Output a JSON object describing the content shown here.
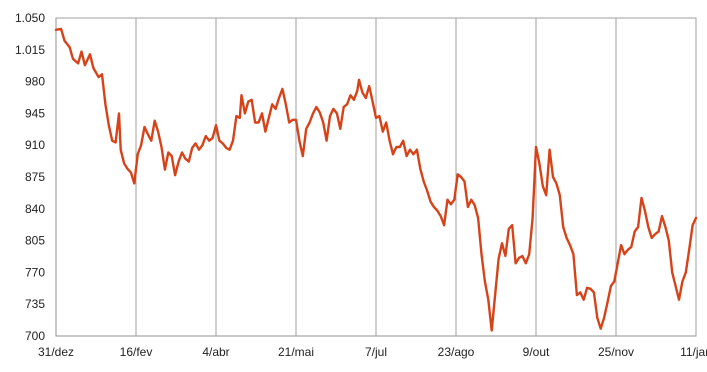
{
  "chart_data": {
    "type": "line",
    "title": "",
    "xlabel": "",
    "ylabel": "",
    "x_ticks": [
      "31/dez",
      "16/fev",
      "4/abr",
      "21/mai",
      "7/jul",
      "23/ago",
      "9/out",
      "25/nov",
      "11/jan"
    ],
    "y_ticks": [
      "700",
      "735",
      "770",
      "805",
      "840",
      "875",
      "910",
      "945",
      "980",
      "1.015",
      "1.050"
    ],
    "ylim": [
      700,
      1050
    ],
    "xlim_days": [
      0,
      376
    ],
    "grid": {
      "vertical": true,
      "horizontal": false
    },
    "legend": "none",
    "series": [
      {
        "color": "#d64319",
        "points": [
          [
            0,
            1037
          ],
          [
            3,
            1038
          ],
          [
            5,
            1025
          ],
          [
            8,
            1018
          ],
          [
            10,
            1005
          ],
          [
            13,
            1000
          ],
          [
            15,
            1013
          ],
          [
            17,
            998
          ],
          [
            20,
            1010
          ],
          [
            22,
            995
          ],
          [
            25,
            985
          ],
          [
            27,
            988
          ],
          [
            29,
            955
          ],
          [
            31,
            932
          ],
          [
            33,
            915
          ],
          [
            35,
            913
          ],
          [
            37,
            945
          ],
          [
            38,
            905
          ],
          [
            40,
            890
          ],
          [
            42,
            884
          ],
          [
            44,
            880
          ],
          [
            46,
            868
          ],
          [
            48,
            900
          ],
          [
            50,
            910
          ],
          [
            52,
            930
          ],
          [
            54,
            922
          ],
          [
            56,
            915
          ],
          [
            58,
            937
          ],
          [
            60,
            925
          ],
          [
            62,
            908
          ],
          [
            64,
            883
          ],
          [
            66,
            902
          ],
          [
            68,
            898
          ],
          [
            70,
            877
          ],
          [
            72,
            892
          ],
          [
            74,
            902
          ],
          [
            76,
            895
          ],
          [
            78,
            892
          ],
          [
            80,
            907
          ],
          [
            82,
            912
          ],
          [
            84,
            905
          ],
          [
            86,
            910
          ],
          [
            88,
            920
          ],
          [
            90,
            915
          ],
          [
            92,
            918
          ],
          [
            94,
            932
          ],
          [
            96,
            915
          ],
          [
            98,
            912
          ],
          [
            100,
            907
          ],
          [
            102,
            905
          ],
          [
            104,
            915
          ],
          [
            106,
            942
          ],
          [
            108,
            940
          ],
          [
            109,
            965
          ],
          [
            111,
            945
          ],
          [
            113,
            958
          ],
          [
            115,
            960
          ],
          [
            117,
            935
          ],
          [
            119,
            935
          ],
          [
            121,
            945
          ],
          [
            123,
            925
          ],
          [
            125,
            940
          ],
          [
            127,
            955
          ],
          [
            129,
            950
          ],
          [
            131,
            962
          ],
          [
            133,
            972
          ],
          [
            135,
            955
          ],
          [
            137,
            935
          ],
          [
            139,
            938
          ],
          [
            141,
            938
          ],
          [
            143,
            915
          ],
          [
            145,
            898
          ],
          [
            147,
            928
          ],
          [
            149,
            935
          ],
          [
            151,
            945
          ],
          [
            153,
            952
          ],
          [
            155,
            946
          ],
          [
            157,
            935
          ],
          [
            159,
            915
          ],
          [
            161,
            942
          ],
          [
            163,
            950
          ],
          [
            165,
            945
          ],
          [
            167,
            928
          ],
          [
            169,
            952
          ],
          [
            171,
            955
          ],
          [
            173,
            965
          ],
          [
            175,
            960
          ],
          [
            177,
            970
          ],
          [
            178,
            982
          ],
          [
            180,
            968
          ],
          [
            182,
            962
          ],
          [
            184,
            975
          ],
          [
            186,
            958
          ],
          [
            188,
            940
          ],
          [
            190,
            942
          ],
          [
            192,
            925
          ],
          [
            194,
            935
          ],
          [
            196,
            915
          ],
          [
            198,
            900
          ],
          [
            200,
            908
          ],
          [
            202,
            908
          ],
          [
            204,
            915
          ],
          [
            206,
            898
          ],
          [
            208,
            905
          ],
          [
            210,
            900
          ],
          [
            212,
            905
          ],
          [
            214,
            884
          ],
          [
            216,
            870
          ],
          [
            218,
            860
          ],
          [
            220,
            848
          ],
          [
            222,
            842
          ],
          [
            224,
            838
          ],
          [
            226,
            832
          ],
          [
            228,
            822
          ],
          [
            230,
            850
          ],
          [
            232,
            845
          ],
          [
            234,
            850
          ],
          [
            236,
            878
          ],
          [
            238,
            875
          ],
          [
            240,
            870
          ],
          [
            242,
            842
          ],
          [
            244,
            850
          ],
          [
            246,
            844
          ],
          [
            248,
            830
          ],
          [
            250,
            790
          ],
          [
            252,
            760
          ],
          [
            254,
            740
          ],
          [
            256,
            706
          ],
          [
            258,
            745
          ],
          [
            260,
            785
          ],
          [
            262,
            802
          ],
          [
            264,
            788
          ],
          [
            266,
            818
          ],
          [
            268,
            822
          ],
          [
            270,
            780
          ],
          [
            272,
            786
          ],
          [
            274,
            788
          ],
          [
            276,
            780
          ],
          [
            278,
            790
          ],
          [
            280,
            830
          ],
          [
            282,
            908
          ],
          [
            284,
            890
          ],
          [
            286,
            865
          ],
          [
            288,
            855
          ],
          [
            290,
            905
          ],
          [
            292,
            875
          ],
          [
            294,
            868
          ],
          [
            296,
            855
          ],
          [
            298,
            820
          ],
          [
            300,
            808
          ],
          [
            302,
            800
          ],
          [
            304,
            790
          ],
          [
            306,
            745
          ],
          [
            308,
            748
          ],
          [
            310,
            740
          ],
          [
            312,
            753
          ],
          [
            314,
            752
          ],
          [
            316,
            748
          ],
          [
            318,
            720
          ],
          [
            320,
            708
          ],
          [
            322,
            720
          ],
          [
            324,
            737
          ],
          [
            326,
            755
          ],
          [
            328,
            760
          ],
          [
            330,
            780
          ],
          [
            332,
            800
          ],
          [
            334,
            790
          ],
          [
            336,
            795
          ],
          [
            338,
            798
          ],
          [
            340,
            815
          ],
          [
            342,
            820
          ],
          [
            344,
            852
          ],
          [
            346,
            838
          ],
          [
            348,
            820
          ],
          [
            350,
            808
          ],
          [
            352,
            812
          ],
          [
            354,
            815
          ],
          [
            356,
            832
          ],
          [
            358,
            820
          ],
          [
            360,
            805
          ],
          [
            362,
            770
          ],
          [
            364,
            755
          ],
          [
            366,
            740
          ],
          [
            368,
            760
          ],
          [
            370,
            770
          ],
          [
            372,
            795
          ],
          [
            374,
            822
          ],
          [
            376,
            830
          ]
        ]
      }
    ]
  }
}
